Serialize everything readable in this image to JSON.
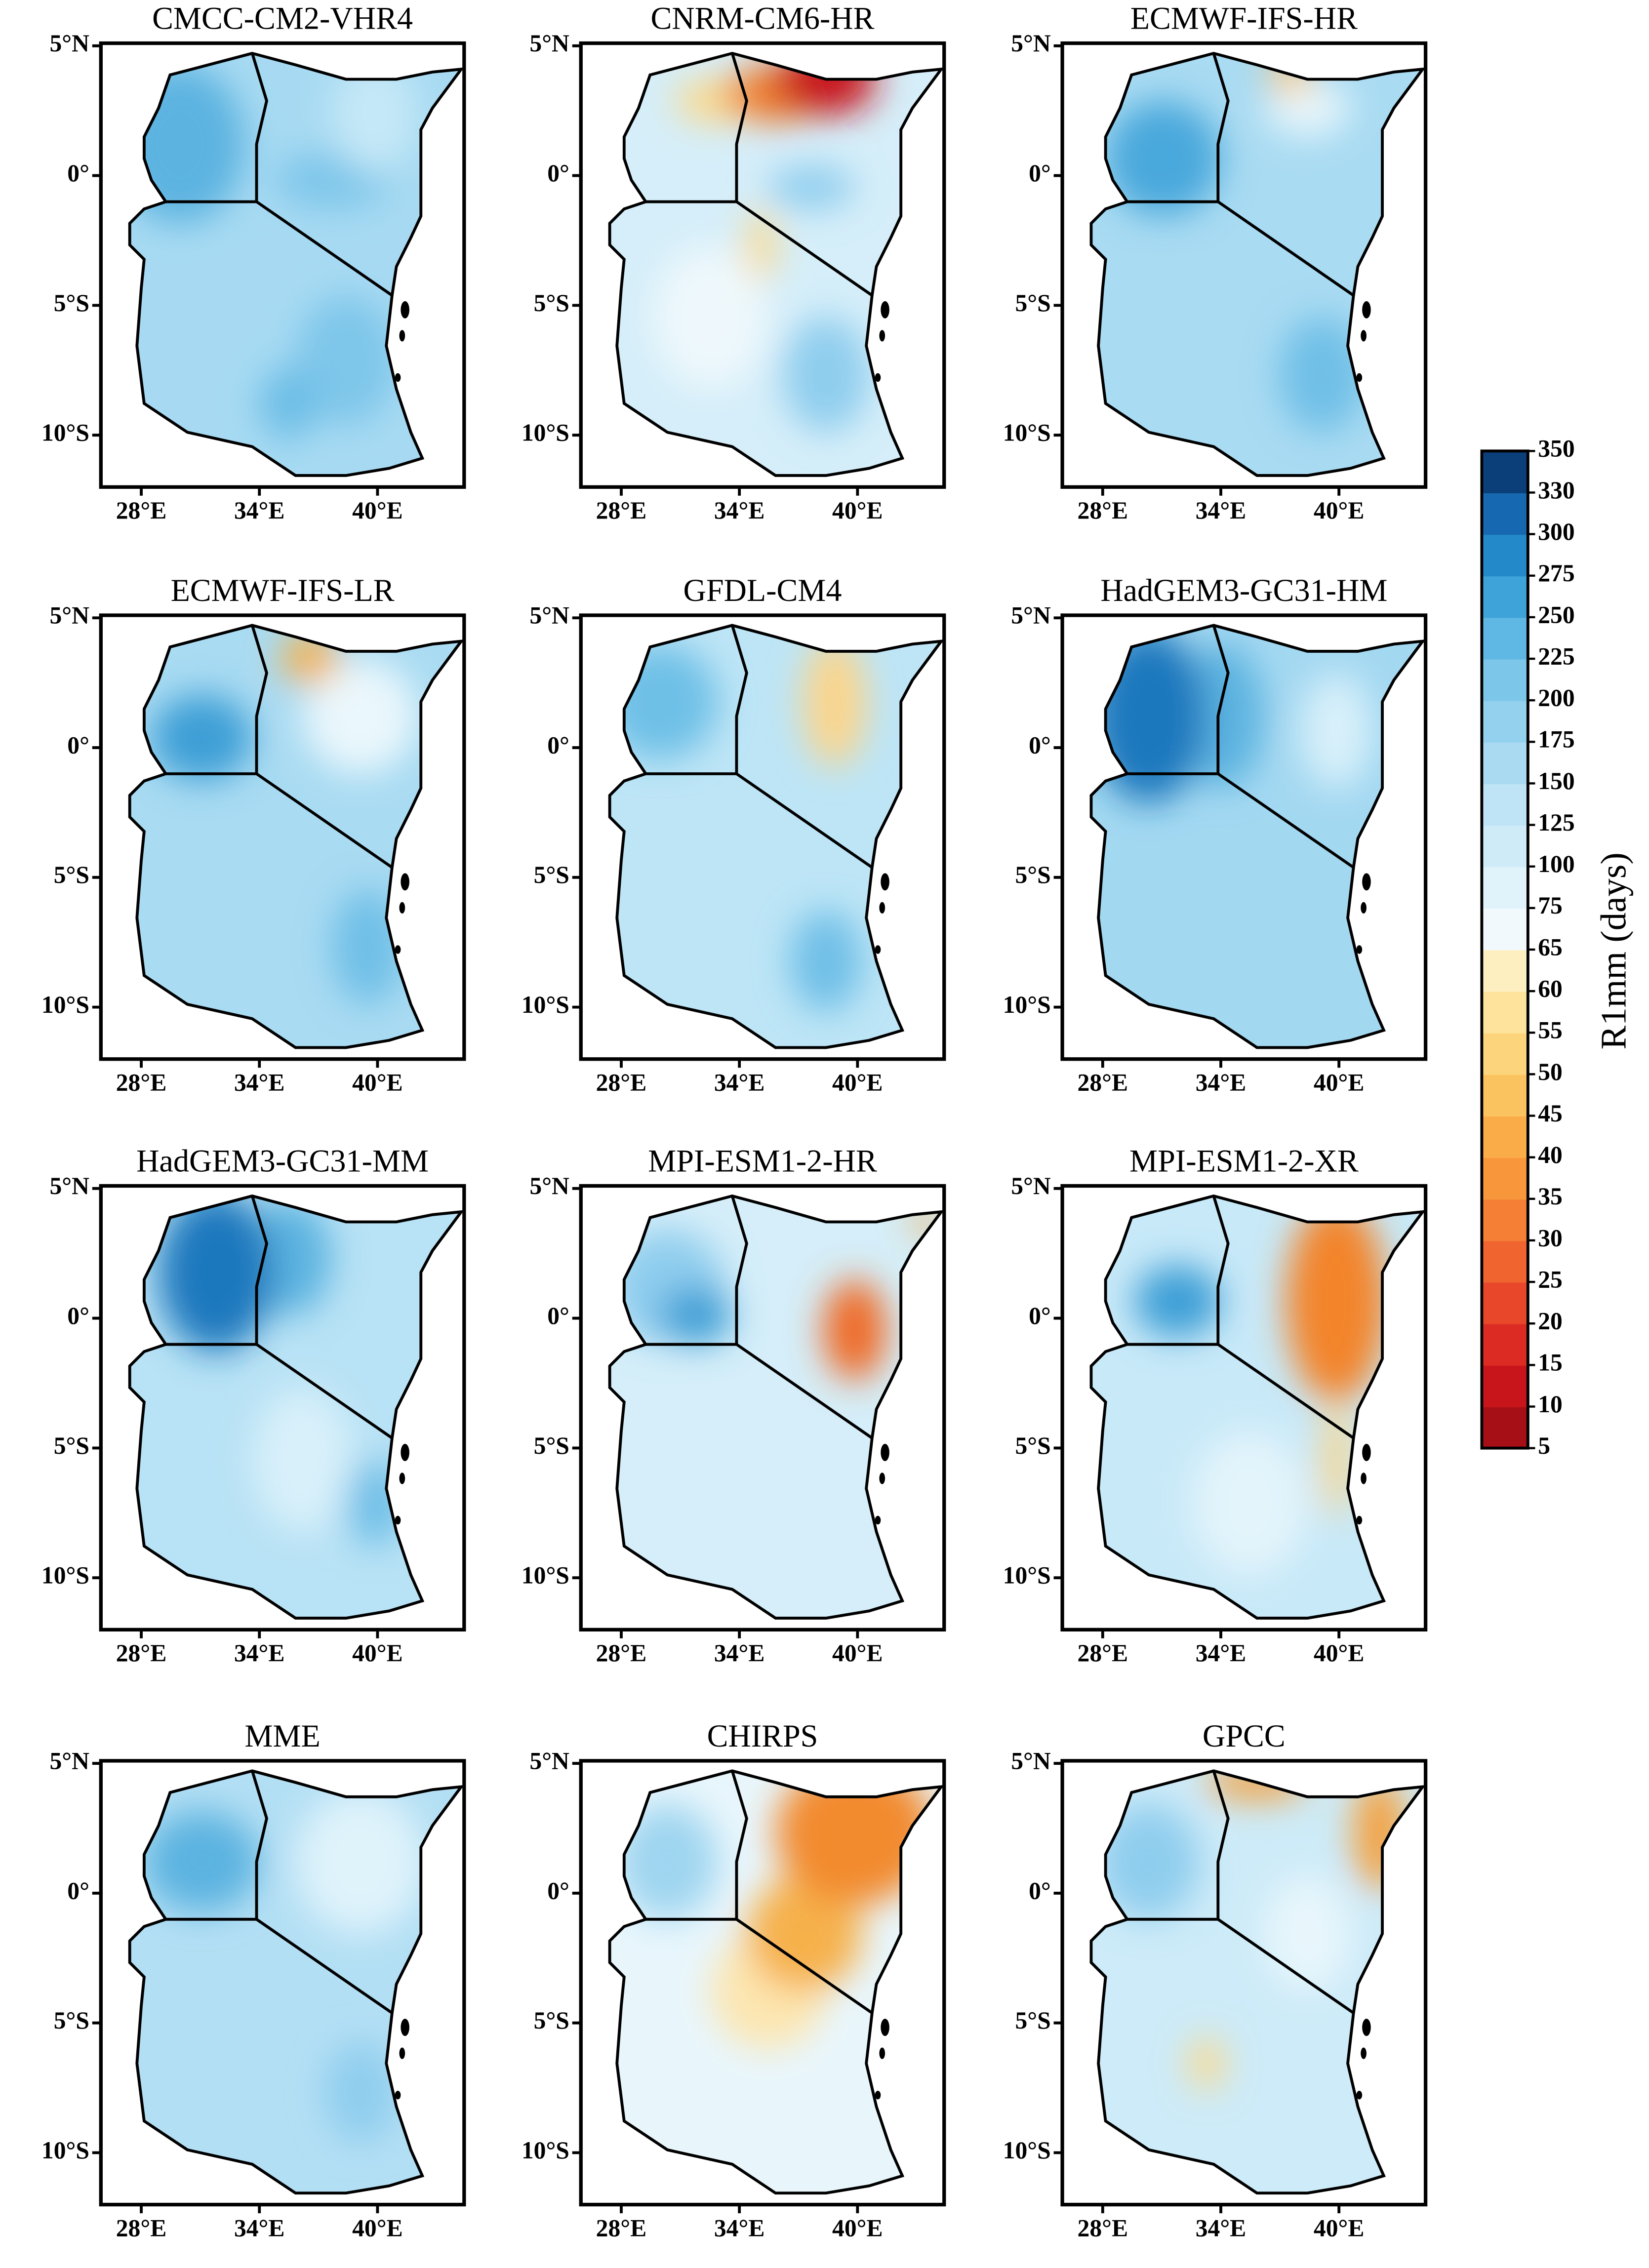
{
  "chart_data": {
    "type": "map",
    "xlim": [
      25.95,
      44.4
    ],
    "ylim": [
      -12,
      5.1
    ],
    "xticks": [
      {
        "value": 28,
        "label": "28°E"
      },
      {
        "value": 34,
        "label": "34°E"
      },
      {
        "value": 40,
        "label": "40°E"
      }
    ],
    "yticks": [
      {
        "value": 5,
        "label": "5°N"
      },
      {
        "value": 0,
        "label": "0°"
      },
      {
        "value": -5,
        "label": "5°S"
      },
      {
        "value": -10,
        "label": "10°S"
      }
    ],
    "panels": [
      {
        "title": "CMCC-CM2-VHR4"
      },
      {
        "title": "CNRM-CM6-HR"
      },
      {
        "title": "ECMWF-IFS-HR"
      },
      {
        "title": "ECMWF-IFS-LR"
      },
      {
        "title": "GFDL-CM4"
      },
      {
        "title": "HadGEM3-GC31-HM"
      },
      {
        "title": "HadGEM3-GC31-MM"
      },
      {
        "title": "MPI-ESM1-2-HR"
      },
      {
        "title": "MPI-ESM1-2-XR"
      },
      {
        "title": "MME"
      },
      {
        "title": "CHIRPS"
      },
      {
        "title": "GPCC"
      }
    ],
    "colorbar": {
      "label": "R1mm (days)",
      "ticks": [
        5,
        10,
        15,
        20,
        25,
        30,
        35,
        40,
        45,
        50,
        55,
        60,
        65,
        75,
        100,
        125,
        150,
        175,
        200,
        225,
        250,
        275,
        300,
        330,
        350
      ],
      "colors": [
        "#a50f15",
        "#c8141b",
        "#dc2b22",
        "#e8472a",
        "#f06430",
        "#f57f35",
        "#f7963b",
        "#faac48",
        "#fbc35f",
        "#fcd47b",
        "#fde39b",
        "#fdefc0",
        "#f2f9fc",
        "#e0f3fb",
        "#cfebf8",
        "#bee4f6",
        "#a9daf2",
        "#94d1ef",
        "#7cc6ea",
        "#5fb7e3",
        "#3ea3d8",
        "#2389c9",
        "#1669b0",
        "#0b3f7a"
      ]
    }
  }
}
